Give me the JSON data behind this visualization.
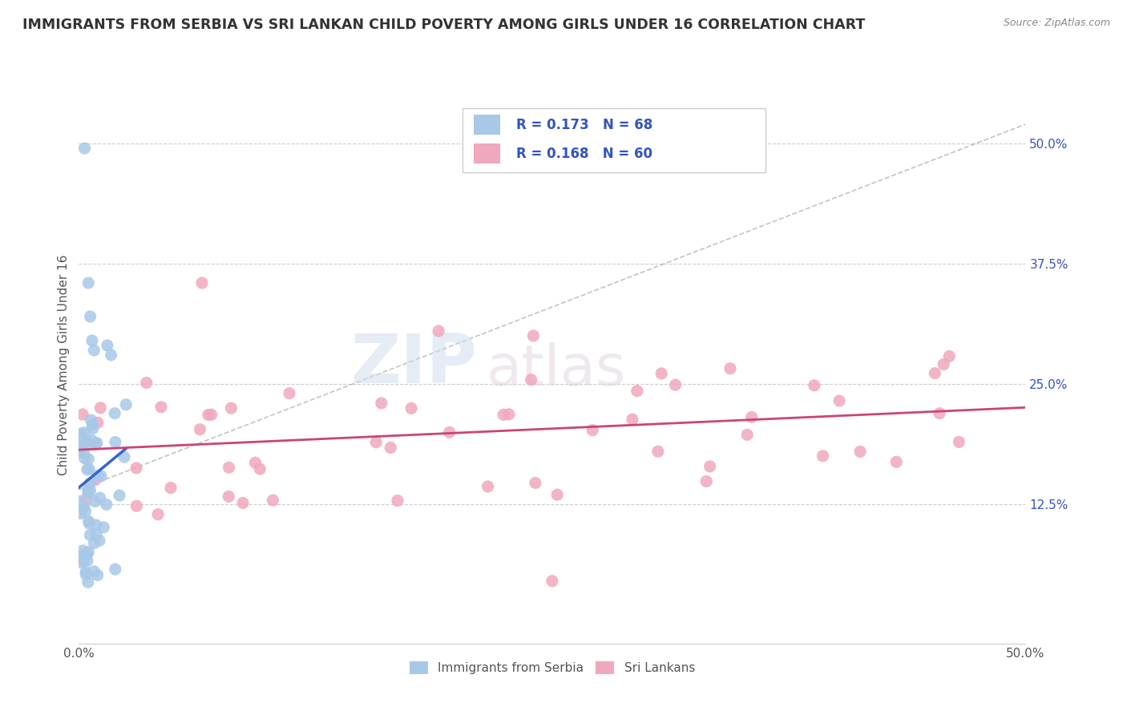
{
  "title": "IMMIGRANTS FROM SERBIA VS SRI LANKAN CHILD POVERTY AMONG GIRLS UNDER 16 CORRELATION CHART",
  "source": "Source: ZipAtlas.com",
  "ylabel": "Child Poverty Among Girls Under 16",
  "yticks": [
    0.0,
    0.125,
    0.25,
    0.375,
    0.5
  ],
  "ytick_labels": [
    "",
    "12.5%",
    "25.0%",
    "37.5%",
    "50.0%"
  ],
  "xlim": [
    0.0,
    0.5
  ],
  "ylim": [
    -0.02,
    0.56
  ],
  "series": [
    {
      "name": "Immigrants from Serbia",
      "R": 0.173,
      "N": 68,
      "color": "#a8c8e8",
      "line_color": "#3366cc",
      "trend_color": "#aabbdd"
    },
    {
      "name": "Sri Lankans",
      "R": 0.168,
      "N": 60,
      "color": "#f0a8bc",
      "line_color": "#cc4477",
      "trend_color": "#cc4477"
    }
  ],
  "watermark_zip": "ZIP",
  "watermark_atlas": "atlas",
  "watermark_color_zip": "#c8d8f0",
  "watermark_color_atlas": "#d8c8d8",
  "background_color": "#ffffff",
  "grid_color": "#cccccc",
  "title_color": "#333333",
  "title_fontsize": 12.5,
  "legend_text_color": "#3355bb",
  "axis_label_color": "#555555",
  "right_tick_color": "#3355bb"
}
